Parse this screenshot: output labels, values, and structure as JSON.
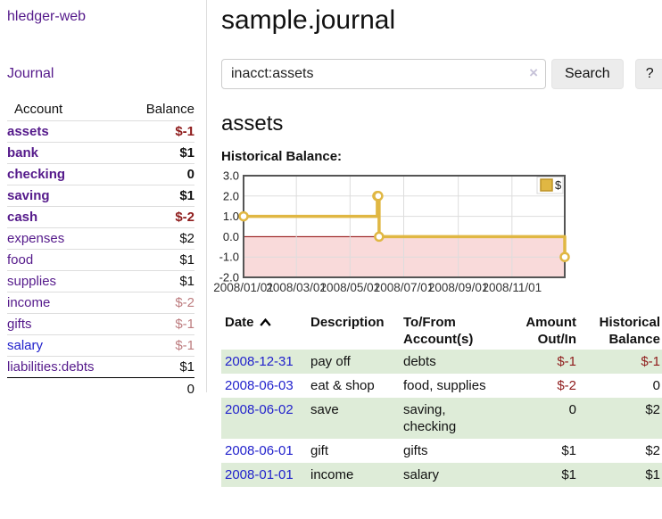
{
  "app": {
    "brand": "hledger-web",
    "nav_journal": "Journal"
  },
  "sidebar": {
    "table": {
      "col_account": "Account",
      "col_balance": "Balance",
      "accounts": [
        {
          "name": "assets",
          "indent": 1,
          "balance": "$-1",
          "bold": true
        },
        {
          "name": "bank",
          "indent": 2,
          "balance": "$1",
          "bold": true
        },
        {
          "name": "checking",
          "indent": 3,
          "balance": "0",
          "bold": true
        },
        {
          "name": "saving",
          "indent": 3,
          "balance": "$1",
          "bold": true
        },
        {
          "name": "cash",
          "indent": 2,
          "balance": "$-2",
          "bold": true
        },
        {
          "name": "expenses",
          "indent": 1,
          "balance": "$2",
          "bold": false
        },
        {
          "name": "food",
          "indent": 2,
          "balance": "$1",
          "bold": false
        },
        {
          "name": "supplies",
          "indent": 2,
          "balance": "$1",
          "bold": false
        },
        {
          "name": "income",
          "indent": 1,
          "balance": "$-2",
          "bold": false
        },
        {
          "name": "gifts",
          "indent": 2,
          "balance": "$-1",
          "bold": false
        },
        {
          "name": "salary",
          "indent": 2,
          "balance": "$-1",
          "bold": false,
          "link_style": "unvisited"
        },
        {
          "name": "liabilities:debts",
          "indent": 1,
          "balance": "$1",
          "bold": false
        }
      ],
      "total": "0"
    }
  },
  "main": {
    "title": "sample.journal",
    "search": {
      "value": "inacct:assets",
      "clear_icon": "×",
      "button": "Search",
      "help_button": "?"
    },
    "account_heading": "assets",
    "chart_label": "Historical Balance:"
  },
  "register": {
    "headers": {
      "date": "Date",
      "date_sort_icon": "chevron-up",
      "description": "Description",
      "accounts": "To/From Account(s)",
      "amount": "Amount Out/In",
      "balance": "Historical Balance"
    },
    "rows": [
      {
        "date": "2008-12-31",
        "description": "pay off",
        "accounts": "debts",
        "amount": "$-1",
        "balance": "$-1"
      },
      {
        "date": "2008-06-03",
        "description": "eat & shop",
        "accounts": "food, supplies",
        "amount": "$-2",
        "balance": "0"
      },
      {
        "date": "2008-06-02",
        "description": "save",
        "accounts": "saving, checking",
        "amount": "0",
        "balance": "$2"
      },
      {
        "date": "2008-06-01",
        "description": "gift",
        "accounts": "gifts",
        "amount": "$1",
        "balance": "$2"
      },
      {
        "date": "2008-01-01",
        "description": "income",
        "accounts": "salary",
        "amount": "$1",
        "balance": "$1"
      }
    ]
  },
  "chart_data": {
    "type": "line",
    "title": "Historical Balance:",
    "step": true,
    "series": [
      {
        "name": "$",
        "color": "#e0b743",
        "points": [
          [
            "2008-01-01",
            1
          ],
          [
            "2008-06-01",
            2
          ],
          [
            "2008-06-02",
            2
          ],
          [
            "2008-06-03",
            0
          ],
          [
            "2008-12-31",
            -1
          ]
        ]
      }
    ],
    "x_range": [
      "2008-01-01",
      "2008-12-31"
    ],
    "ylim": [
      -2,
      3
    ],
    "yticks": [
      3,
      2,
      1,
      0,
      -1,
      -2
    ],
    "xticks": [
      "2008/01/01",
      "2008/03/01",
      "2008/05/01",
      "2008/07/01",
      "2008/09/01",
      "2008/11/01"
    ],
    "grid": true,
    "negative_region_color": "#f9dada",
    "zero_line_color": "#8b0000",
    "legend": "$",
    "legend_position": "top-right"
  },
  "colors": {
    "purple_link": "#551a8b",
    "blue_link": "#2222cc",
    "negative": "#8f1c1c",
    "negative_muted": "#bd7c7f",
    "row_stripe_green": "#deecd8",
    "chart_line_gold": "#e0b743",
    "chart_negative_pink": "#f9dada"
  }
}
